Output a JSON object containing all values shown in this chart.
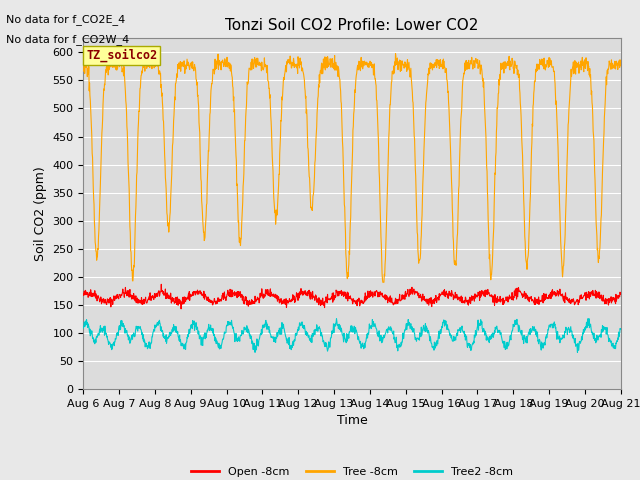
{
  "title": "Tonzi Soil CO2 Profile: Lower CO2",
  "ylabel": "Soil CO2 (ppm)",
  "xlabel": "Time",
  "annotation_lines": [
    "No data for f_CO2E_4",
    "No data for f_CO2W_4"
  ],
  "box_label": "TZ_soilco2",
  "ylim": [
    0,
    625
  ],
  "yticks": [
    0,
    50,
    100,
    150,
    200,
    250,
    300,
    350,
    400,
    450,
    500,
    550,
    600
  ],
  "x_start_day": 6,
  "x_end_day": 21,
  "x_tick_days": [
    6,
    7,
    8,
    9,
    10,
    11,
    12,
    13,
    14,
    15,
    16,
    17,
    18,
    19,
    20,
    21
  ],
  "n_points": 1440,
  "open_color": "#FF0000",
  "tree_color": "#FFA500",
  "tree2_color": "#00CCCC",
  "open_mean": 163,
  "tree2_mean": 97,
  "background_color": "#E8E8E8",
  "plot_bg_color": "#DCDCDC",
  "legend_labels": [
    "Open -8cm",
    "Tree -8cm",
    "Tree2 -8cm"
  ],
  "linewidth": 0.8,
  "title_fontsize": 11,
  "label_fontsize": 9,
  "tick_fontsize": 8,
  "annotation_fontsize": 8
}
